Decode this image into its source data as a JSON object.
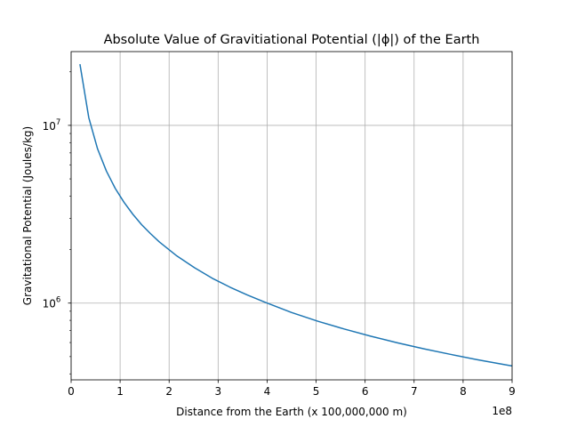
{
  "chart_data": {
    "type": "line",
    "title": "Absolute Value of Gravitiational Potential (|ϕ|) of the Earth",
    "xlabel": "Distance from the Earth (x 100,000,000 m)",
    "ylabel": "Gravitational Potential (Joules/kg)",
    "x_offset_label": "1e8",
    "xscale": "linear",
    "yscale": "log",
    "xlim": [
      0,
      900000000
    ],
    "ylim": [
      370000,
      26000000
    ],
    "grid": true,
    "x_ticks": [
      0,
      100000000,
      200000000,
      300000000,
      400000000,
      500000000,
      600000000,
      700000000,
      800000000,
      900000000
    ],
    "x_tick_labels": [
      "0",
      "1",
      "2",
      "3",
      "4",
      "5",
      "6",
      "7",
      "8",
      "9"
    ],
    "y_ticks": [
      1000000,
      10000000
    ],
    "y_tick_labels": [
      {
        "base": "10",
        "exp": "6"
      },
      {
        "base": "10",
        "exp": "7"
      }
    ],
    "line_color": "#1f77b4",
    "series": [
      {
        "x": [
          18000000,
          36000000,
          54000000,
          72000000,
          90000000,
          108000000,
          126000000,
          144000000,
          162000000,
          180000000,
          216000000,
          252000000,
          288000000,
          324000000,
          360000000,
          396000000,
          450000000,
          504000000,
          558000000,
          612000000,
          666000000,
          720000000,
          774000000,
          828000000,
          882000000,
          900000000
        ],
        "values": [
          22100000,
          11060000,
          7370000,
          5530000,
          4420000,
          3690000,
          3160000,
          2760000,
          2460000,
          2210000,
          1840000,
          1580000,
          1380000,
          1230000,
          1110000,
          1010000,
          885000,
          790000,
          714000,
          651000,
          598000,
          553000,
          515000,
          481000,
          452000,
          443000
        ]
      }
    ]
  }
}
